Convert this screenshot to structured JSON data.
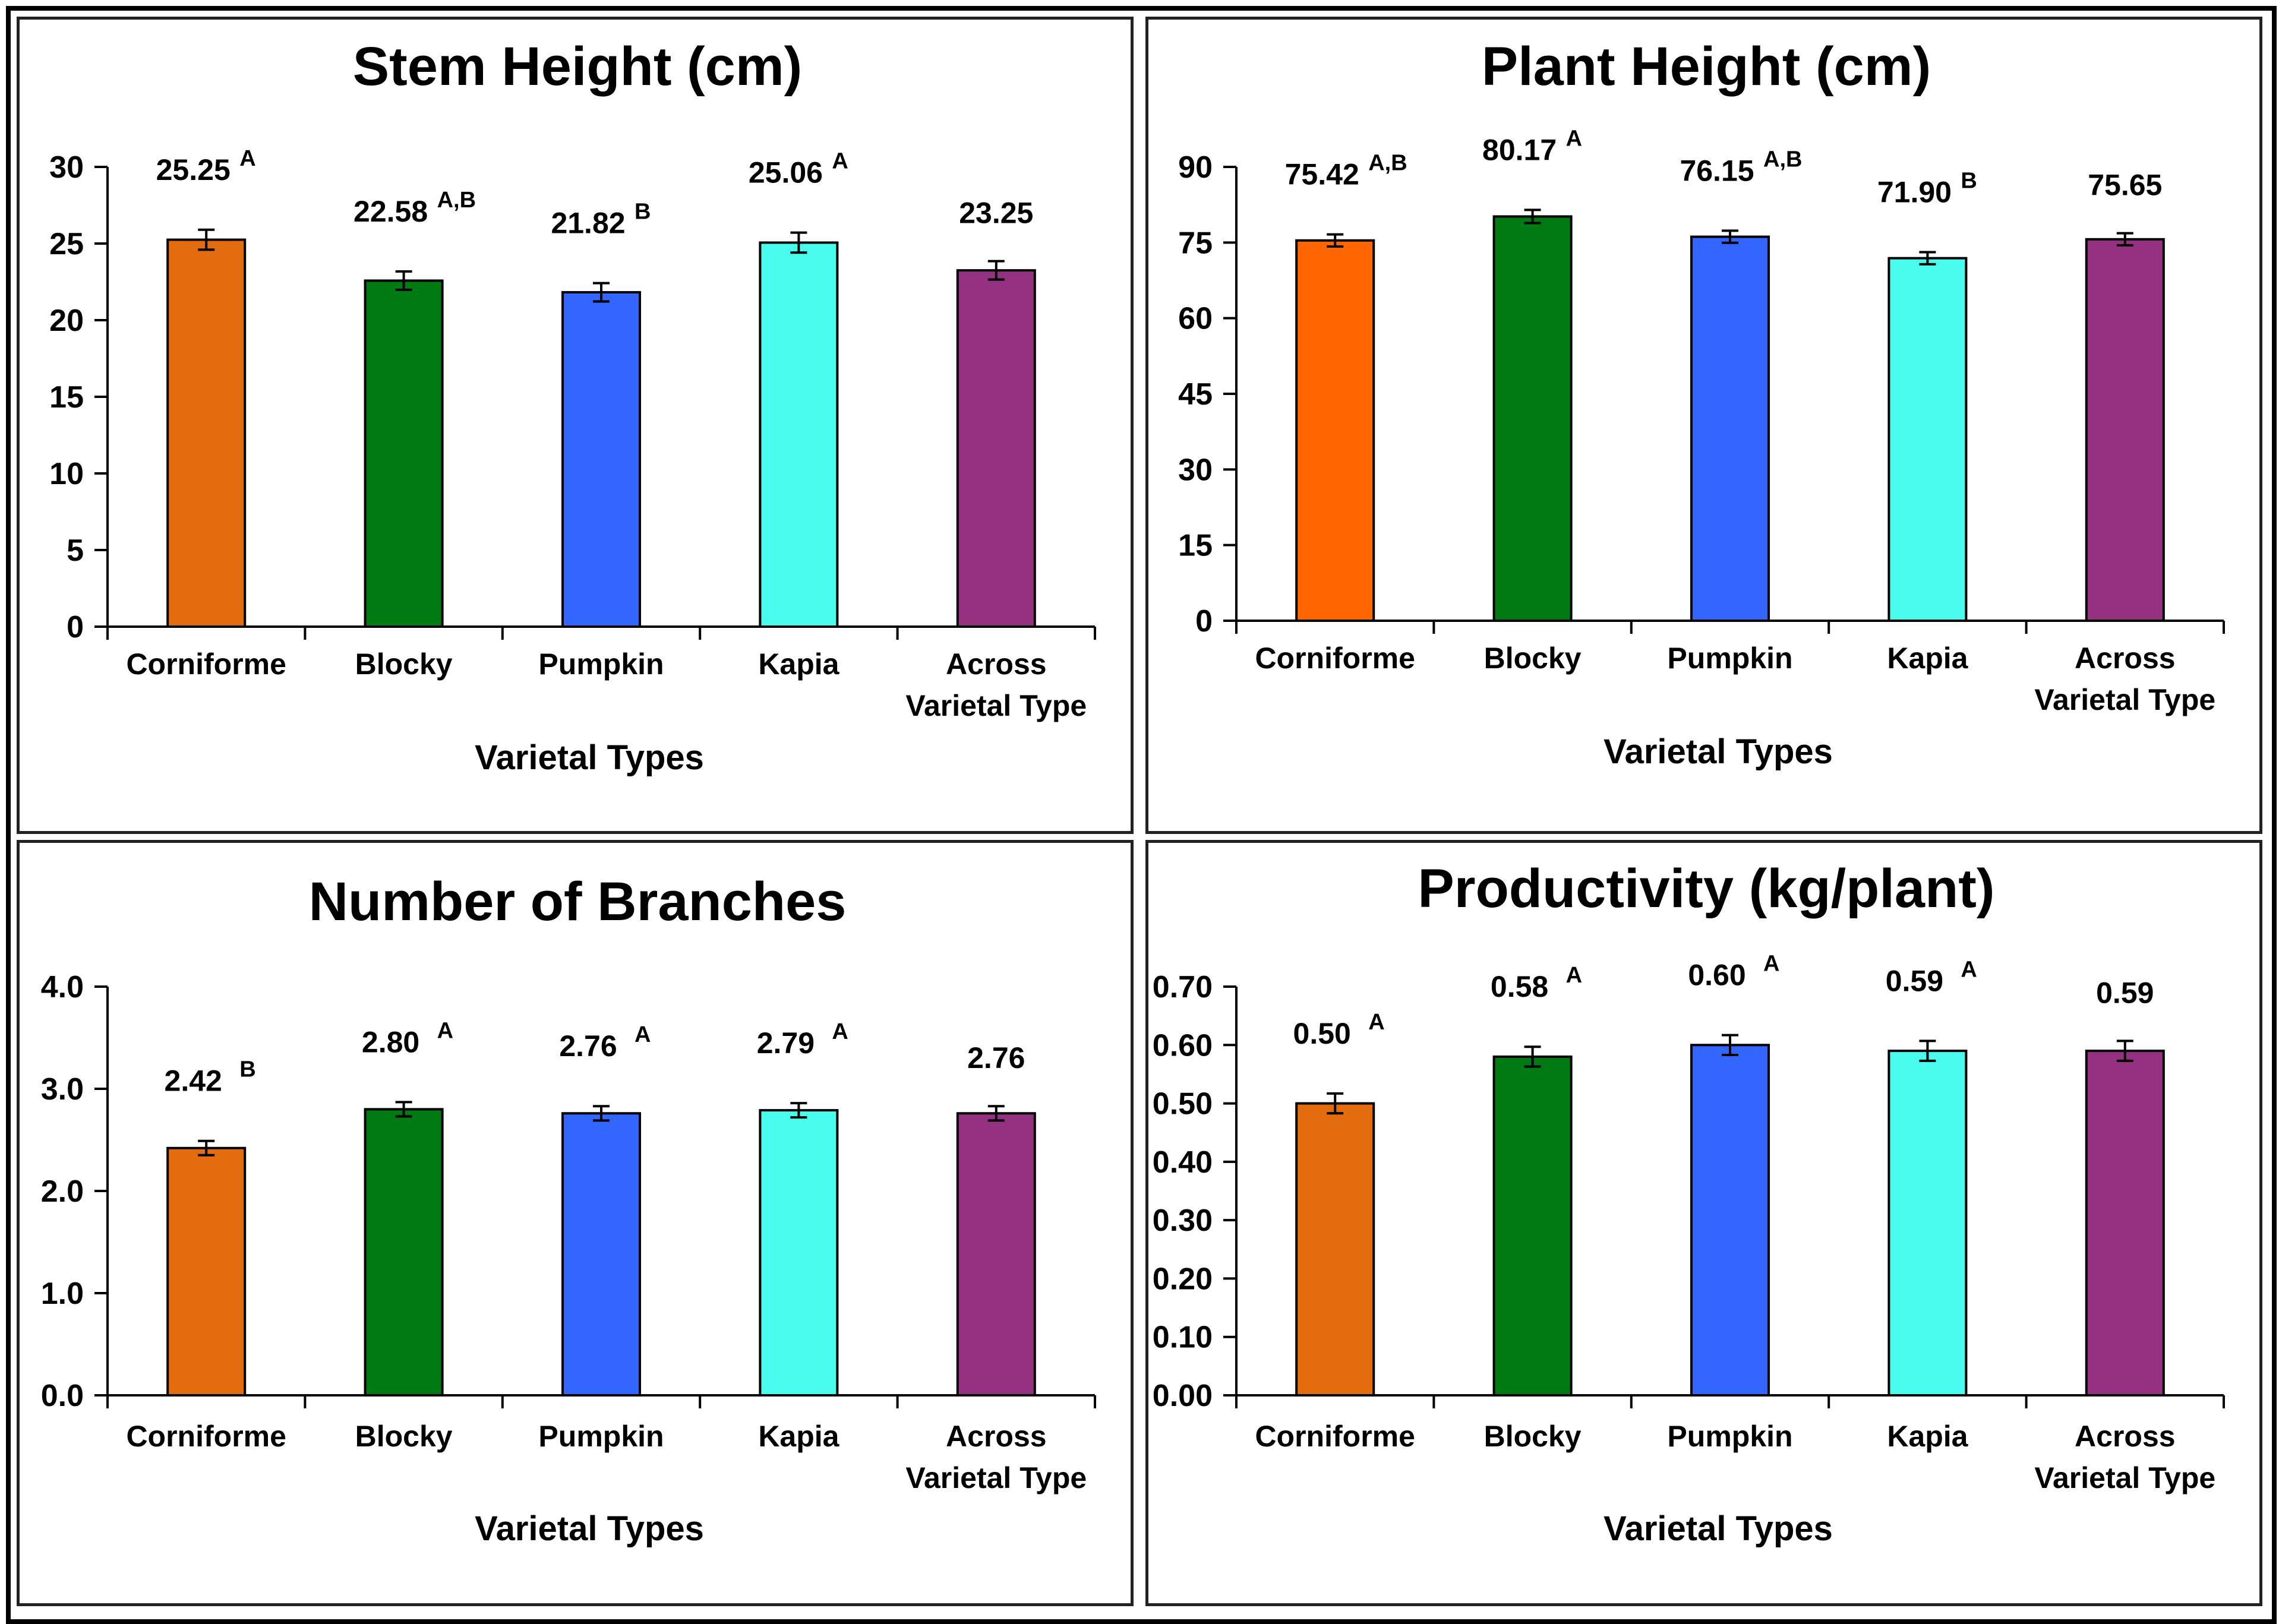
{
  "colors": [
    "#E36C0E",
    "#007A12",
    "#3366FF",
    "#48FCEE",
    "#943180"
  ],
  "plant_height_first_color": "#FF6600",
  "chart_data": [
    {
      "type": "bar",
      "title": "Stem Height (cm)",
      "xlabel": "Varietal Types",
      "ylabel": "",
      "categories": [
        [
          "Corniforme"
        ],
        [
          "Blocky"
        ],
        [
          "Pumpkin"
        ],
        [
          "Kapia"
        ],
        [
          "Across",
          "Varietal Type"
        ]
      ],
      "values": [
        25.25,
        22.58,
        21.82,
        25.06,
        23.25
      ],
      "value_labels": [
        "25.25",
        "22.58",
        "21.82",
        "25.06",
        "23.25"
      ],
      "significance": [
        "A",
        "A,B",
        "B",
        "A",
        ""
      ],
      "error": [
        0.65,
        0.6,
        0.6,
        0.65,
        0.6
      ],
      "ylim": [
        0,
        30
      ],
      "yticks": [
        "0",
        "5",
        "10",
        "15",
        "20",
        "25",
        "30"
      ],
      "ytick_values": [
        0,
        5,
        10,
        15,
        20,
        25,
        30
      ]
    },
    {
      "type": "bar",
      "title": "Plant Height (cm)",
      "xlabel": "Varietal Types",
      "ylabel": "",
      "categories": [
        [
          "Corniforme"
        ],
        [
          "Blocky"
        ],
        [
          "Pumpkin"
        ],
        [
          "Kapia"
        ],
        [
          "Across",
          "Varietal Type"
        ]
      ],
      "values": [
        75.42,
        80.17,
        76.15,
        71.9,
        75.65
      ],
      "value_labels": [
        "75.42",
        "80.17",
        "76.15",
        "71.90",
        "75.65"
      ],
      "significance": [
        "A,B",
        "A",
        "A,B",
        "B",
        ""
      ],
      "error": [
        1.2,
        1.3,
        1.2,
        1.2,
        1.2
      ],
      "ylim": [
        0,
        90
      ],
      "yticks": [
        "0",
        "15",
        "30",
        "45",
        "60",
        "75",
        "90"
      ],
      "ytick_values": [
        0,
        15,
        30,
        45,
        60,
        75,
        90
      ]
    },
    {
      "type": "bar",
      "title": "Number of Branches",
      "xlabel": "Varietal Types",
      "ylabel": "",
      "categories": [
        [
          "Corniforme"
        ],
        [
          "Blocky"
        ],
        [
          "Pumpkin"
        ],
        [
          "Kapia"
        ],
        [
          "Across",
          "Varietal Type"
        ]
      ],
      "values": [
        2.42,
        2.8,
        2.76,
        2.79,
        2.76
      ],
      "value_labels": [
        "2.42",
        "2.80",
        "2.76",
        "2.79",
        "2.76"
      ],
      "significance": [
        "B",
        "A",
        "A",
        "A",
        ""
      ],
      "error": [
        0.07,
        0.07,
        0.07,
        0.07,
        0.07
      ],
      "ylim": [
        0,
        4
      ],
      "yticks": [
        "0.0",
        "1.0",
        "2.0",
        "3.0",
        "4.0"
      ],
      "ytick_values": [
        0,
        1,
        2,
        3,
        4
      ]
    },
    {
      "type": "bar",
      "title": "Productivity (kg/plant)",
      "xlabel": "Varietal Types",
      "ylabel": "",
      "categories": [
        [
          "Corniforme"
        ],
        [
          "Blocky"
        ],
        [
          "Pumpkin"
        ],
        [
          "Kapia"
        ],
        [
          "Across",
          "Varietal Type"
        ]
      ],
      "values": [
        0.5,
        0.58,
        0.6,
        0.59,
        0.59
      ],
      "value_labels": [
        "0.50",
        "0.58",
        "0.60",
        "0.59",
        "0.59"
      ],
      "significance": [
        "A",
        "A",
        "A",
        "A",
        ""
      ],
      "error": [
        0.017,
        0.017,
        0.017,
        0.017,
        0.017
      ],
      "ylim": [
        0,
        0.7
      ],
      "yticks": [
        "0.00",
        "0.10",
        "0.20",
        "0.30",
        "0.40",
        "0.50",
        "0.60",
        "0.70"
      ],
      "ytick_values": [
        0,
        0.1,
        0.2,
        0.3,
        0.4,
        0.5,
        0.6,
        0.7
      ]
    }
  ]
}
